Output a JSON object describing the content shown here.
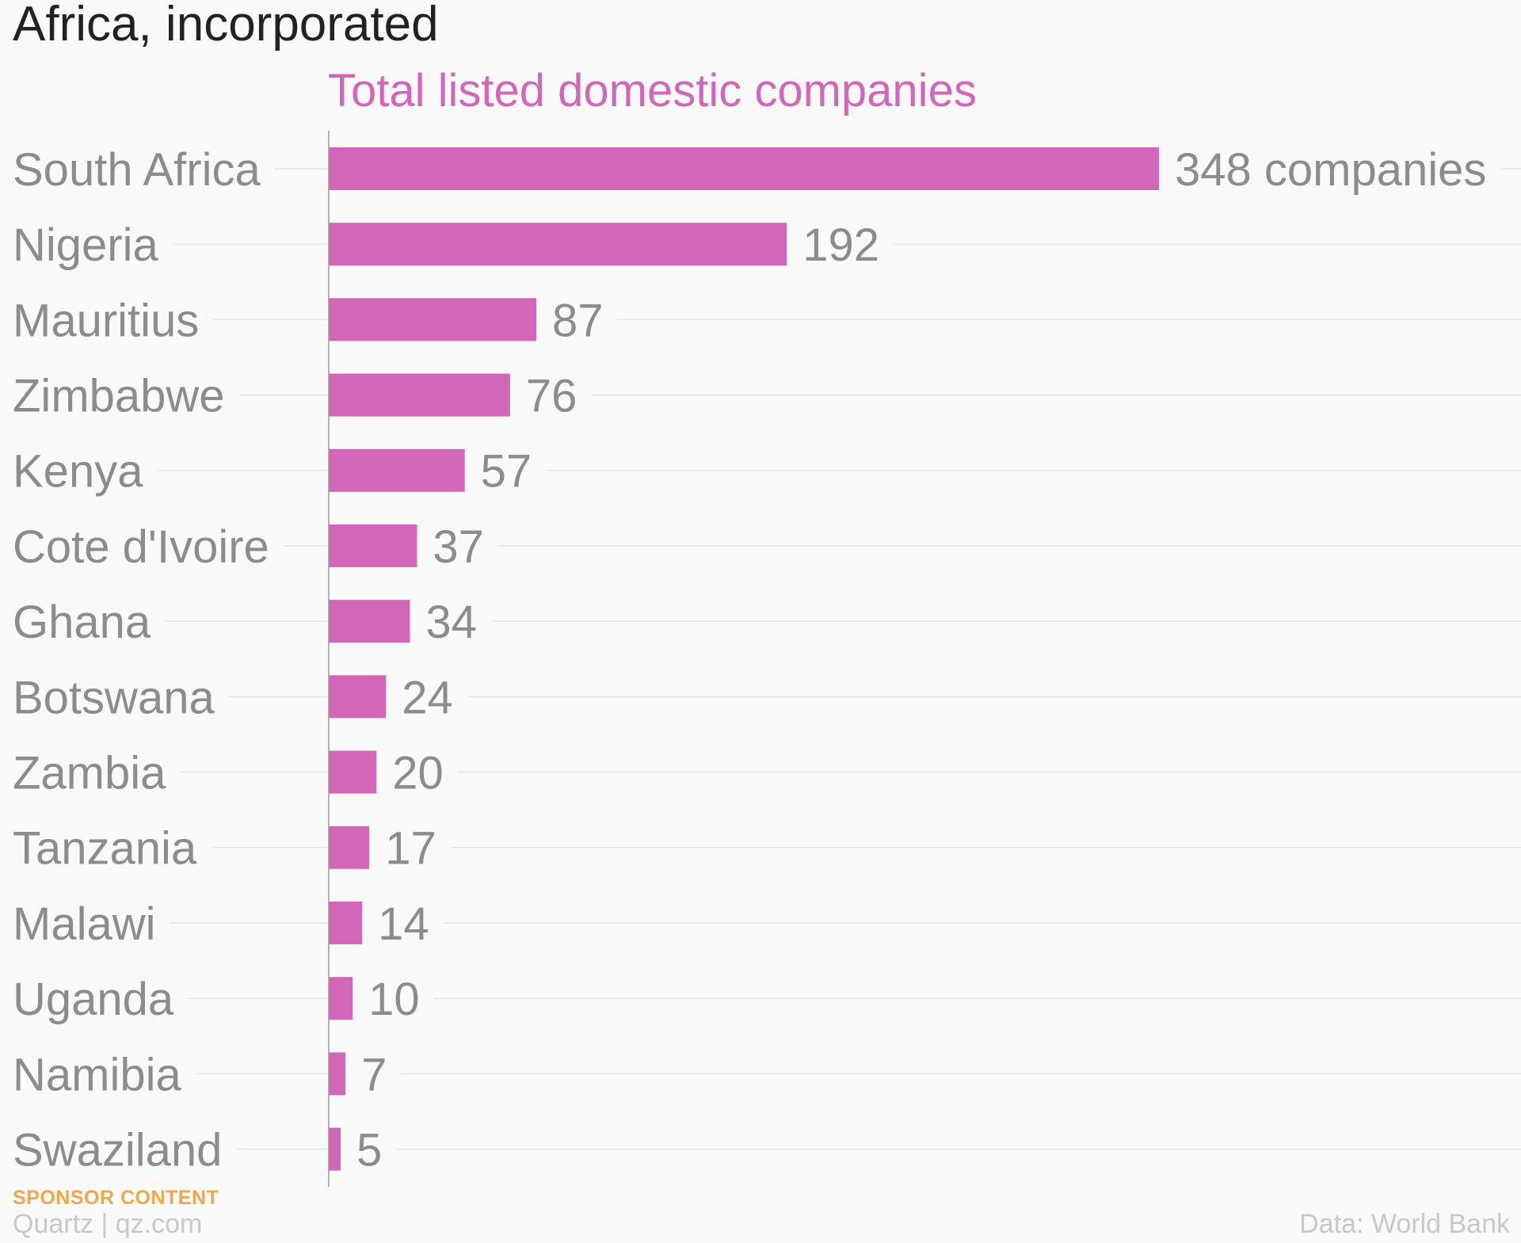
{
  "title": "Africa, incorporated",
  "subtitle": "Total listed domestic companies",
  "footer": {
    "sponsor": "SPONSOR CONTENT",
    "credit": "Quartz | qz.com",
    "source": "Data: World Bank"
  },
  "colors": {
    "bar": "#d266b9",
    "label": "#8c8c8c",
    "title": "#222222",
    "sponsor": "#f0a747",
    "footer": "#c8c8c8"
  },
  "chart_data": {
    "type": "bar",
    "orientation": "horizontal",
    "title": "Total listed domestic companies",
    "categories": [
      "South Africa",
      "Nigeria",
      "Mauritius",
      "Zimbabwe",
      "Kenya",
      "Cote d'Ivoire",
      "Ghana",
      "Botswana",
      "Zambia",
      "Tanzania",
      "Malawi",
      "Uganda",
      "Namibia",
      "Swaziland"
    ],
    "values": [
      348,
      192,
      87,
      76,
      57,
      37,
      34,
      24,
      20,
      17,
      14,
      10,
      7,
      5
    ],
    "value_labels": [
      "348 companies",
      "192",
      "87",
      "76",
      "57",
      "37",
      "34",
      "24",
      "20",
      "17",
      "14",
      "10",
      "7",
      "5"
    ],
    "xlim": [
      0,
      348
    ],
    "grid": true,
    "legend": "none"
  }
}
